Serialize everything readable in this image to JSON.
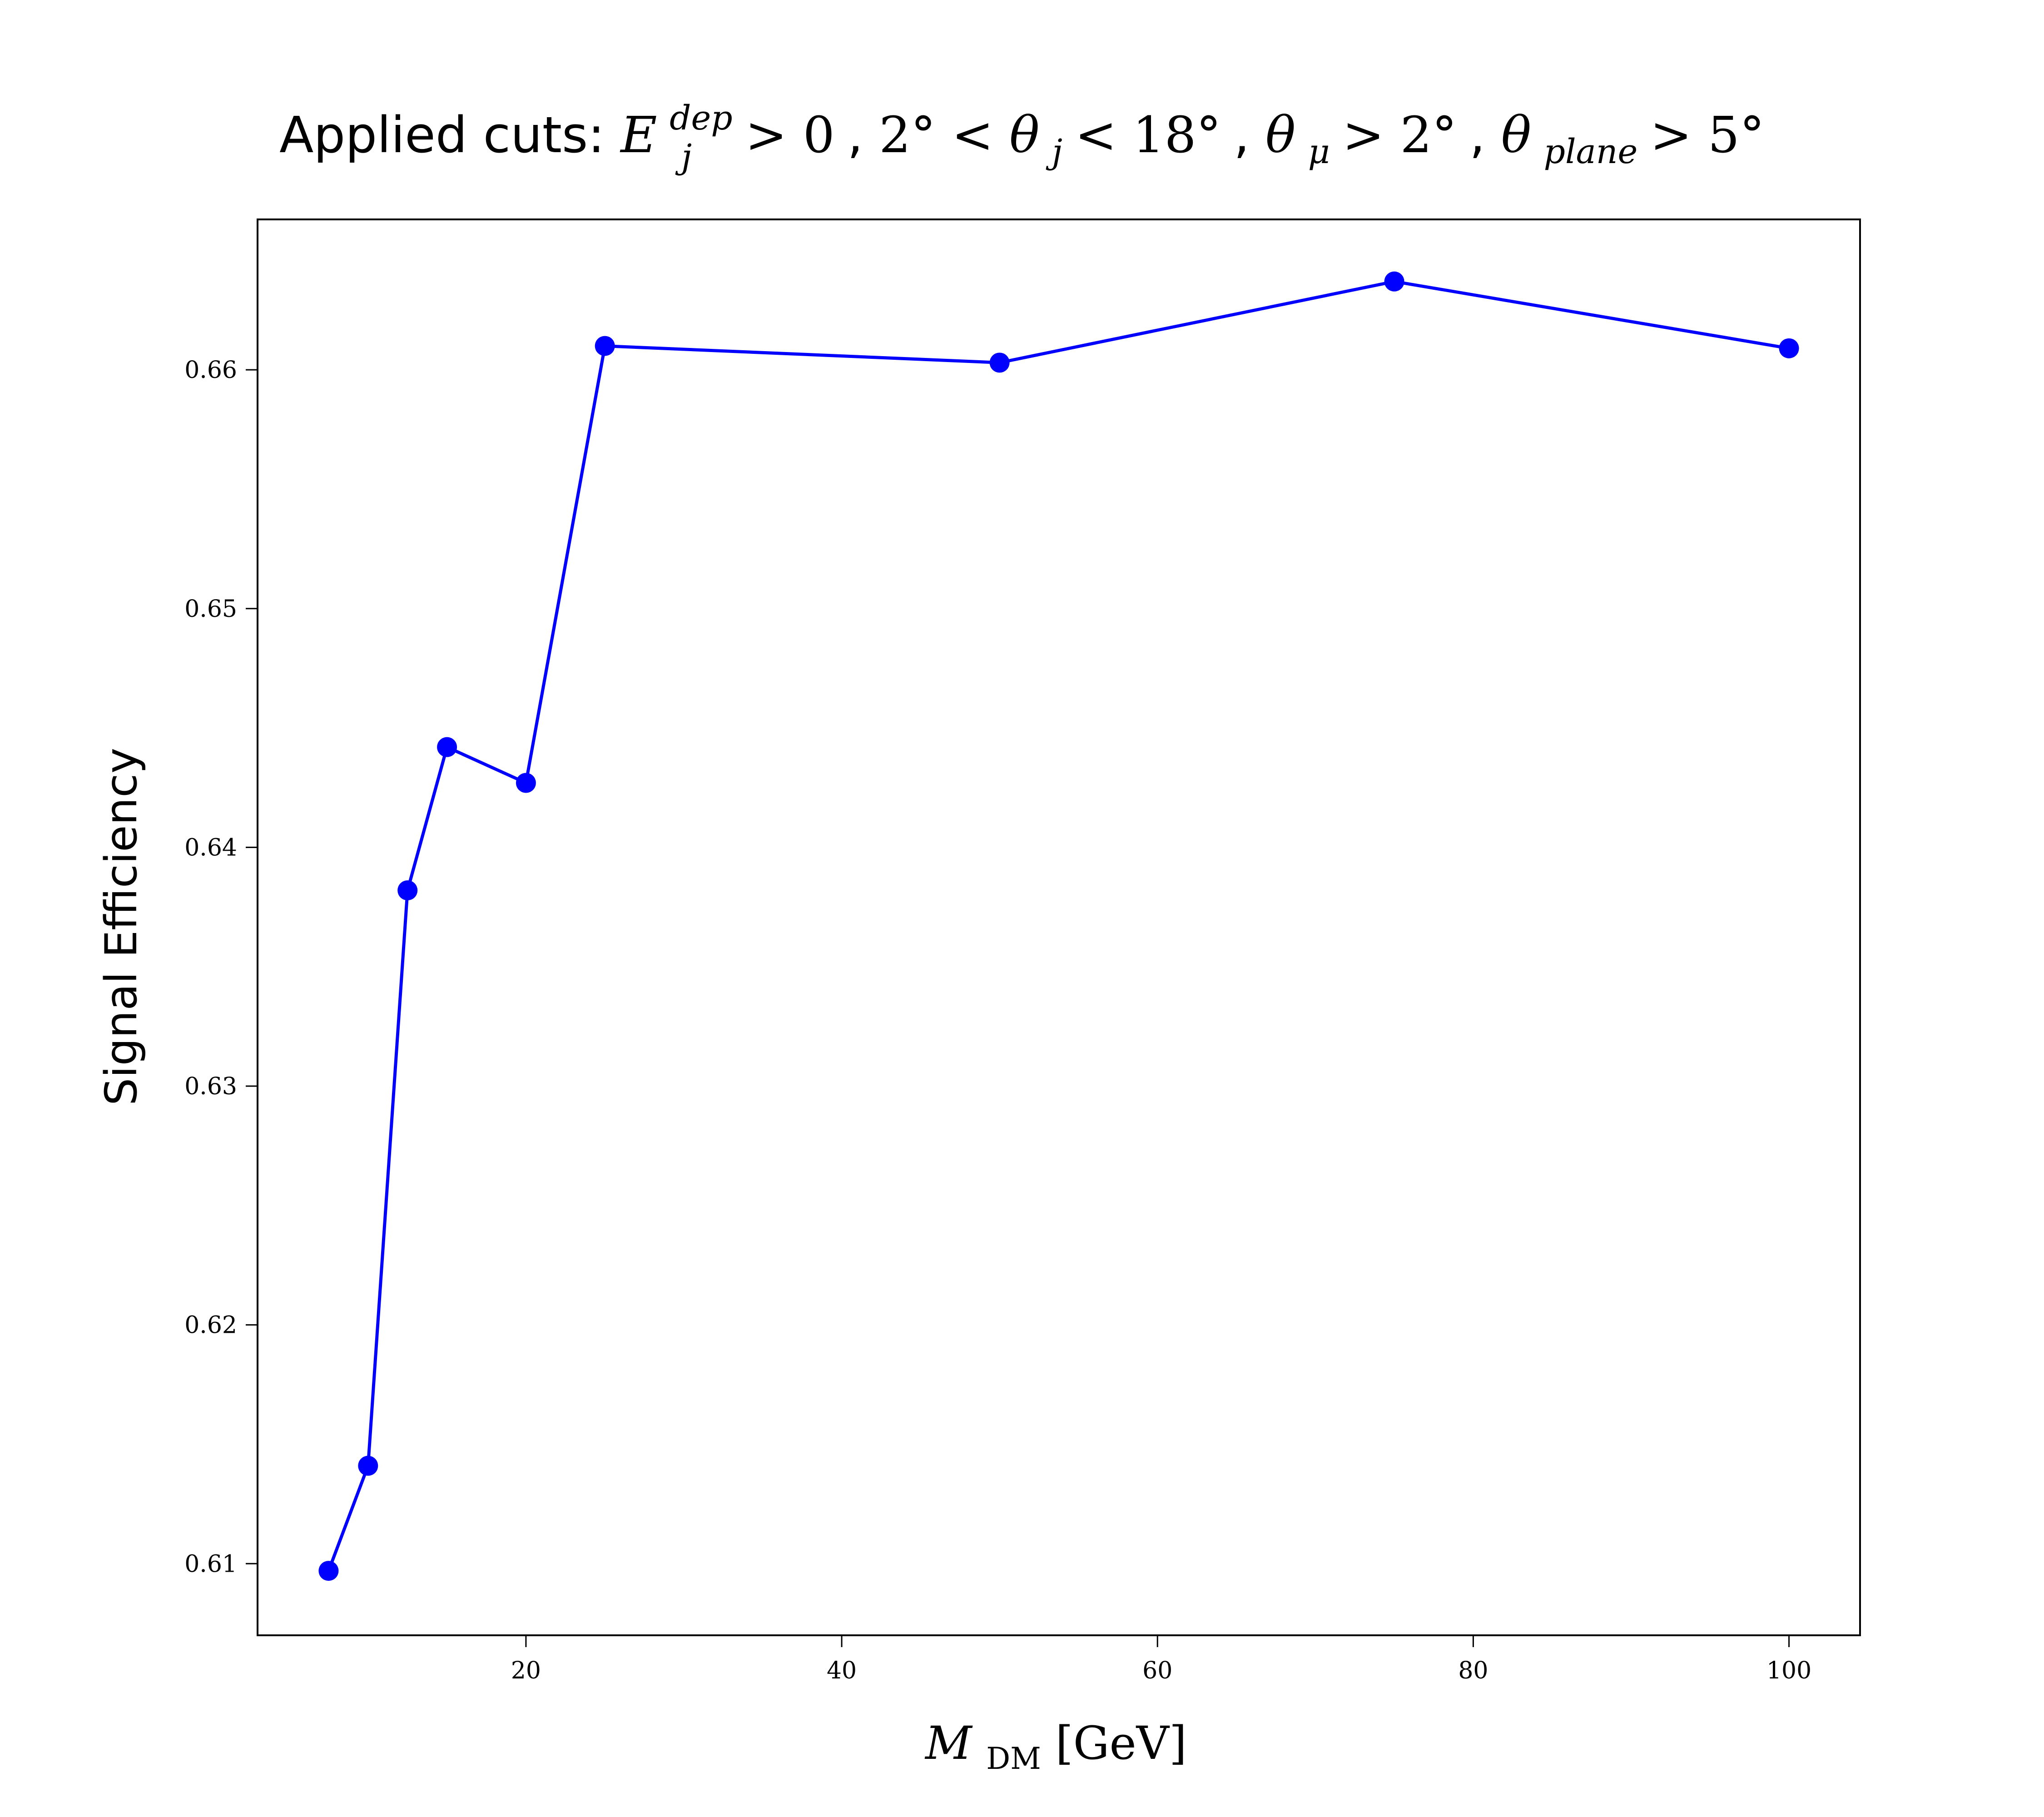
{
  "chart_data": {
    "type": "line",
    "title": {
      "prefix": "Applied cuts: ",
      "E": "E",
      "E_sup": "dep",
      "E_sub": "j",
      "part1": " > 0",
      "sep1": ", ",
      "part2": "2° < ",
      "theta": "θ",
      "theta_j_sub": "j",
      "part3": " < 18°",
      "sep2": ", ",
      "theta_mu_sub": "μ",
      "part4": " > 2°",
      "sep3": ", ",
      "theta_plane_sub": "plane",
      "part5": " > 5°"
    },
    "xlabel": {
      "M": "M",
      "M_sub": "DM",
      "unit": " [GeV]"
    },
    "ylabel": "Signal Efficiency",
    "xlim": [
      3,
      104.5
    ],
    "ylim": [
      0.607,
      0.6663
    ],
    "xticks": [
      20,
      40,
      60,
      80,
      100
    ],
    "yticks": [
      0.61,
      0.62,
      0.63,
      0.64,
      0.65,
      0.66
    ],
    "ytick_labels": [
      "0.61",
      "0.62",
      "0.63",
      "0.64",
      "0.65",
      "0.66"
    ],
    "grid": false,
    "series": [
      {
        "color": "#0000ff",
        "marker": "circle",
        "x": [
          7.5,
          10,
          12.5,
          15,
          20,
          25,
          50,
          75,
          100
        ],
        "y": [
          0.6097,
          0.6141,
          0.6382,
          0.6442,
          0.6427,
          0.661,
          0.6603,
          0.6637,
          0.6609
        ]
      }
    ]
  }
}
